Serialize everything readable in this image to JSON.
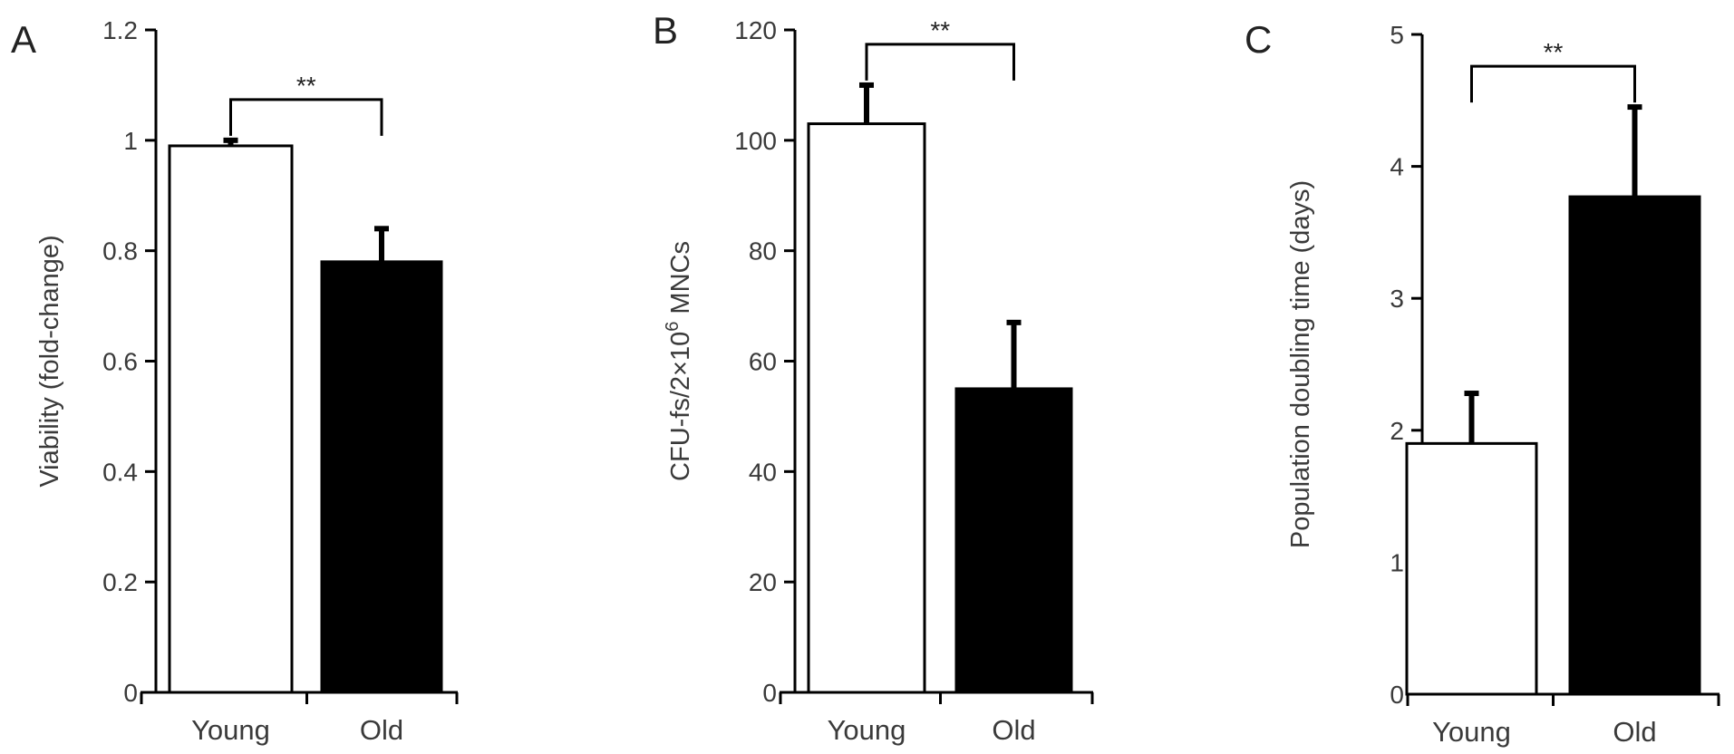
{
  "figure": {
    "background": "#ffffff"
  },
  "chart_data": [
    {
      "type": "bar",
      "panel_label": "A",
      "categories": [
        "Young",
        "Old"
      ],
      "values": [
        0.99,
        0.78
      ],
      "errors": [
        0.01,
        0.06
      ],
      "bar_colors": [
        "#ffffff",
        "#000000"
      ],
      "ylabel": "Viability (fold-change)",
      "ylim": [
        0,
        1.2
      ],
      "yticks": [
        0,
        0.2,
        0.4,
        0.6,
        0.8,
        1,
        1.2
      ],
      "ytick_labels": [
        "0",
        "0.2",
        "0.4",
        "0.6",
        "0.8",
        "1",
        "1.2"
      ],
      "significance": "**",
      "grid": false,
      "legend": false
    },
    {
      "type": "bar",
      "panel_label": "B",
      "categories": [
        "Young",
        "Old"
      ],
      "values": [
        103,
        55
      ],
      "errors": [
        7,
        12
      ],
      "bar_colors": [
        "#ffffff",
        "#000000"
      ],
      "ylabel_parts": [
        "CFU-fs/2×10",
        "6",
        " MNCs"
      ],
      "ylim": [
        0,
        120
      ],
      "yticks": [
        0,
        20,
        40,
        60,
        80,
        100,
        120
      ],
      "ytick_labels": [
        "0",
        "20",
        "40",
        "60",
        "80",
        "100",
        "120"
      ],
      "significance": "**",
      "grid": false,
      "legend": false
    },
    {
      "type": "bar",
      "panel_label": "C",
      "categories": [
        "Young",
        "Old"
      ],
      "values": [
        1.9,
        3.77
      ],
      "errors": [
        0.38,
        0.68
      ],
      "bar_colors": [
        "#ffffff",
        "#000000"
      ],
      "ylabel": "Population doubling time (days)",
      "ylim": [
        0,
        5
      ],
      "yticks": [
        0,
        1,
        2,
        3,
        4,
        5
      ],
      "ytick_labels": [
        "0",
        "1",
        "2",
        "3",
        "4",
        "5"
      ],
      "significance": "**",
      "grid": false,
      "legend": false
    }
  ]
}
